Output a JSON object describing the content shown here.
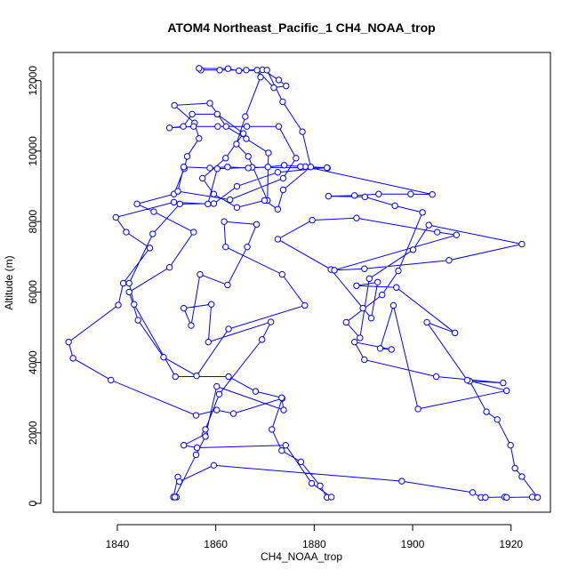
{
  "chart_data": {
    "type": "line",
    "title": "ATOM4 Northeast_Pacific_1 CH4_NOAA_trop",
    "xlabel": "CH4_NOAA_trop",
    "ylabel": "Altitude (m)",
    "xlim": [
      1827,
      1928
    ],
    "ylim": [
      -250,
      12800
    ],
    "xticks": [
      1840,
      1860,
      1880,
      1900,
      1920
    ],
    "yticks": [
      0,
      2000,
      4000,
      6000,
      8000,
      10000,
      12000
    ],
    "grid": false,
    "legend": "none",
    "series": [
      {
        "color": "#0000ff",
        "marker": "open-circle",
        "points": [
          [
            1852.0,
            180
          ],
          [
            1851.4,
            180
          ],
          [
            1852.3,
            750
          ],
          [
            1852.6,
            620
          ],
          [
            1859.6,
            1080
          ],
          [
            1897.8,
            630
          ],
          [
            1912.2,
            310
          ],
          [
            1913.9,
            170
          ],
          [
            1914.8,
            170
          ],
          [
            1918.7,
            180
          ],
          [
            1919.1,
            170
          ],
          [
            1924.3,
            180
          ],
          [
            1925.4,
            170
          ],
          [
            1922.2,
            760
          ],
          [
            1920.8,
            1000
          ],
          [
            1919.9,
            1650
          ],
          [
            1917.2,
            2380
          ],
          [
            1915.0,
            2600
          ],
          [
            1911.6,
            3470
          ],
          [
            1918.4,
            3420
          ],
          [
            1904.8,
            3600
          ],
          [
            1890.2,
            4080
          ],
          [
            1888.2,
            4580
          ],
          [
            1895.7,
            4370
          ],
          [
            1893.4,
            4400
          ],
          [
            1896.1,
            5620
          ],
          [
            1901.1,
            2680
          ],
          [
            1919.1,
            3200
          ],
          [
            1911.1,
            3500
          ],
          [
            1902.9,
            5140
          ],
          [
            1908.6,
            4840
          ],
          [
            1896.7,
            6130
          ],
          [
            1888.6,
            6180
          ],
          [
            1892.9,
            6280
          ],
          [
            1891.6,
            5260
          ],
          [
            1889.9,
            5540
          ],
          [
            1883.4,
            6640
          ],
          [
            1872.6,
            7500
          ],
          [
            1879.6,
            8040
          ],
          [
            1888.6,
            8100
          ],
          [
            1905.0,
            7700
          ],
          [
            1908.9,
            7620
          ],
          [
            1884.1,
            6620
          ],
          [
            1890.2,
            6660
          ],
          [
            1907.4,
            6900
          ],
          [
            1922.2,
            7360
          ],
          [
            1903.3,
            7900
          ],
          [
            1900.1,
            7200
          ],
          [
            1891.2,
            6380
          ],
          [
            1889.3,
            4700
          ],
          [
            1886.5,
            5140
          ],
          [
            1893.8,
            5920
          ],
          [
            1897.1,
            6600
          ],
          [
            1902.0,
            8260
          ],
          [
            1896.4,
            8450
          ],
          [
            1890.3,
            8700
          ],
          [
            1882.9,
            8720
          ],
          [
            1888.2,
            8740
          ],
          [
            1893.1,
            8780
          ],
          [
            1899.6,
            8780
          ],
          [
            1904.0,
            8770
          ],
          [
            1878.2,
            9560
          ],
          [
            1882.7,
            9520
          ],
          [
            1867.4,
            9540
          ],
          [
            1860.3,
            9500
          ],
          [
            1858.4,
            8500
          ],
          [
            1851.5,
            8550
          ],
          [
            1839.7,
            8120
          ],
          [
            1841.8,
            7700
          ],
          [
            1846.6,
            7250
          ],
          [
            1841.2,
            6250
          ],
          [
            1840.2,
            5630
          ],
          [
            1830.1,
            4580
          ],
          [
            1831.0,
            4120
          ],
          [
            1838.7,
            3500
          ],
          [
            1856.0,
            2500
          ],
          [
            1860.2,
            2650
          ],
          [
            1863.6,
            2550
          ],
          [
            1873.5,
            2980
          ],
          [
            1871.4,
            2100
          ],
          [
            1873.4,
            1500
          ],
          [
            1877.3,
            1180
          ],
          [
            1881.2,
            500
          ],
          [
            1882.6,
            170
          ],
          [
            1883.5,
            180
          ],
          [
            1879.5,
            570
          ],
          [
            1874.2,
            1650
          ],
          [
            1856.2,
            1580
          ],
          [
            1853.5,
            1650
          ],
          [
            1857.8,
            1960
          ],
          [
            1857.9,
            2100
          ],
          [
            1860.7,
            3100
          ],
          [
            1869.4,
            4650
          ],
          [
            1871.2,
            5150
          ],
          [
            1858.5,
            4580
          ],
          [
            1859.1,
            5650
          ],
          [
            1853.5,
            5540
          ],
          [
            1855.0,
            5050
          ],
          [
            1856.8,
            6500
          ],
          [
            1862.4,
            6200
          ],
          [
            1866.4,
            7280
          ],
          [
            1868.3,
            7920
          ],
          [
            1861.7,
            8000
          ],
          [
            1862.0,
            7280
          ],
          [
            1873.5,
            6500
          ],
          [
            1878.1,
            5620
          ],
          [
            1862.6,
            4950
          ],
          [
            1856.1,
            3620
          ],
          [
            1849.4,
            4150
          ],
          [
            1844.2,
            5200
          ],
          [
            1842.4,
            6000
          ],
          [
            1850.6,
            6700
          ],
          [
            1855.5,
            7700
          ],
          [
            1847.4,
            8280
          ],
          [
            1844.0,
            8500
          ],
          [
            1851.5,
            8780
          ],
          [
            1853.6,
            9500
          ],
          [
            1854.2,
            9850
          ],
          [
            1856.6,
            10360
          ],
          [
            1855.7,
            10800
          ],
          [
            1851.6,
            11300
          ],
          [
            1858.8,
            11360
          ],
          [
            1862.1,
            10700
          ],
          [
            1866.2,
            10350
          ],
          [
            1870.7,
            9950
          ],
          [
            1870.5,
            8600
          ],
          [
            1866.6,
            9850
          ],
          [
            1864.2,
            10200
          ],
          [
            1866.0,
            10980
          ],
          [
            1869.1,
            12100
          ],
          [
            1868.4,
            12300
          ],
          [
            1871.8,
            11800
          ],
          [
            1874.3,
            11850
          ],
          [
            1872.8,
            12020
          ],
          [
            1869.5,
            12310
          ],
          [
            1866.2,
            12300
          ],
          [
            1860.8,
            12300
          ],
          [
            1857.0,
            12300
          ],
          [
            1856.6,
            12350
          ],
          [
            1862.5,
            12340
          ],
          [
            1864.7,
            12280
          ],
          [
            1870.4,
            12300
          ],
          [
            1873.6,
            11400
          ],
          [
            1877.6,
            10550
          ],
          [
            1879.3,
            9550
          ],
          [
            1873.7,
            8900
          ],
          [
            1872.6,
            8350
          ],
          [
            1869.9,
            8600
          ],
          [
            1864.3,
            8400
          ],
          [
            1859.6,
            8780
          ],
          [
            1857.3,
            9230
          ],
          [
            1862.0,
            9800
          ],
          [
            1865.6,
            10500
          ],
          [
            1860.3,
            11050
          ],
          [
            1855.2,
            11050
          ],
          [
            1853.4,
            10700
          ],
          [
            1850.6,
            10660
          ],
          [
            1855.5,
            10700
          ],
          [
            1860.4,
            10700
          ],
          [
            1866.3,
            10700
          ],
          [
            1872.8,
            10700
          ],
          [
            1876.3,
            9800
          ],
          [
            1873.7,
            9230
          ],
          [
            1862.9,
            8620
          ],
          [
            1852.3,
            8860
          ],
          [
            1853.5,
            9550
          ],
          [
            1858.8,
            9520
          ],
          [
            1862.4,
            9550
          ],
          [
            1866.6,
            9520
          ],
          [
            1870.6,
            9550
          ],
          [
            1873.9,
            9600
          ],
          [
            1877.2,
            9560
          ],
          [
            1882.6,
            9530
          ],
          [
            1872.6,
            9400
          ],
          [
            1864.3,
            9000
          ],
          [
            1859.6,
            8510
          ],
          [
            1852.7,
            8500
          ],
          [
            1847.2,
            7650
          ],
          [
            1842.4,
            6250
          ],
          [
            1843.4,
            5650
          ],
          [
            1851.8,
            3600
          ],
          [
            1862.6,
            3600
          ],
          [
            1868.1,
            3180
          ],
          [
            1873.4,
            3000
          ],
          [
            1873.8,
            2650
          ],
          [
            1860.2,
            3320
          ],
          [
            1857.9,
            1900
          ],
          [
            1856.0,
            1380
          ],
          [
            1851.7,
            180
          ]
        ]
      }
    ]
  }
}
